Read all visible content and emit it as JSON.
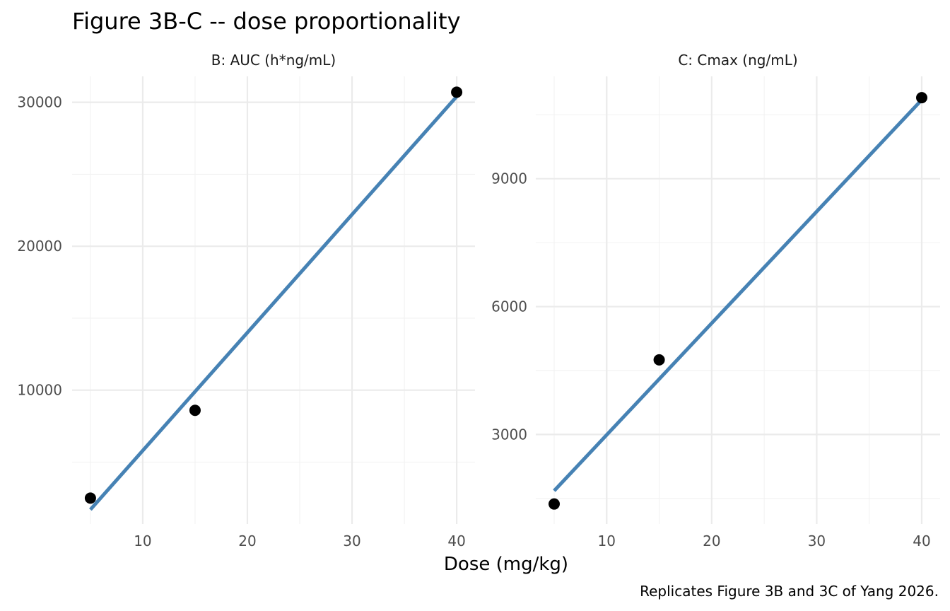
{
  "title": "Figure 3B-C -- dose proportionality",
  "xlabel": "Dose (mg/kg)",
  "caption": "Replicates Figure 3B and 3C of Yang 2026.",
  "colors": {
    "fit_line": "#4682b4",
    "points": "#000000",
    "grid": "#ebebeb"
  },
  "chart_data": [
    {
      "type": "scatter",
      "panel_label": "B: AUC (h*ng/mL)",
      "x": [
        5,
        15,
        40
      ],
      "y": [
        2500,
        8600,
        30700
      ],
      "fit_line": {
        "x": [
          5,
          40
        ],
        "y": [
          1700,
          30400
        ]
      },
      "xlim": [
        3.25,
        41.75
      ],
      "ylim": [
        700,
        31800
      ],
      "xticks": [
        10,
        20,
        30,
        40
      ],
      "yticks": [
        10000,
        20000,
        30000
      ],
      "grid": true
    },
    {
      "type": "scatter",
      "panel_label": "C: Cmax (ng/mL)",
      "x": [
        5,
        15,
        40
      ],
      "y": [
        1370,
        4750,
        10900
      ],
      "fit_line": {
        "x": [
          5,
          40
        ],
        "y": [
          1680,
          10850
        ]
      },
      "xlim": [
        3.25,
        41.75
      ],
      "ylim": [
        900,
        11400
      ],
      "xticks": [
        10,
        20,
        30,
        40
      ],
      "yticks": [
        3000,
        6000,
        9000
      ],
      "grid": true
    }
  ]
}
